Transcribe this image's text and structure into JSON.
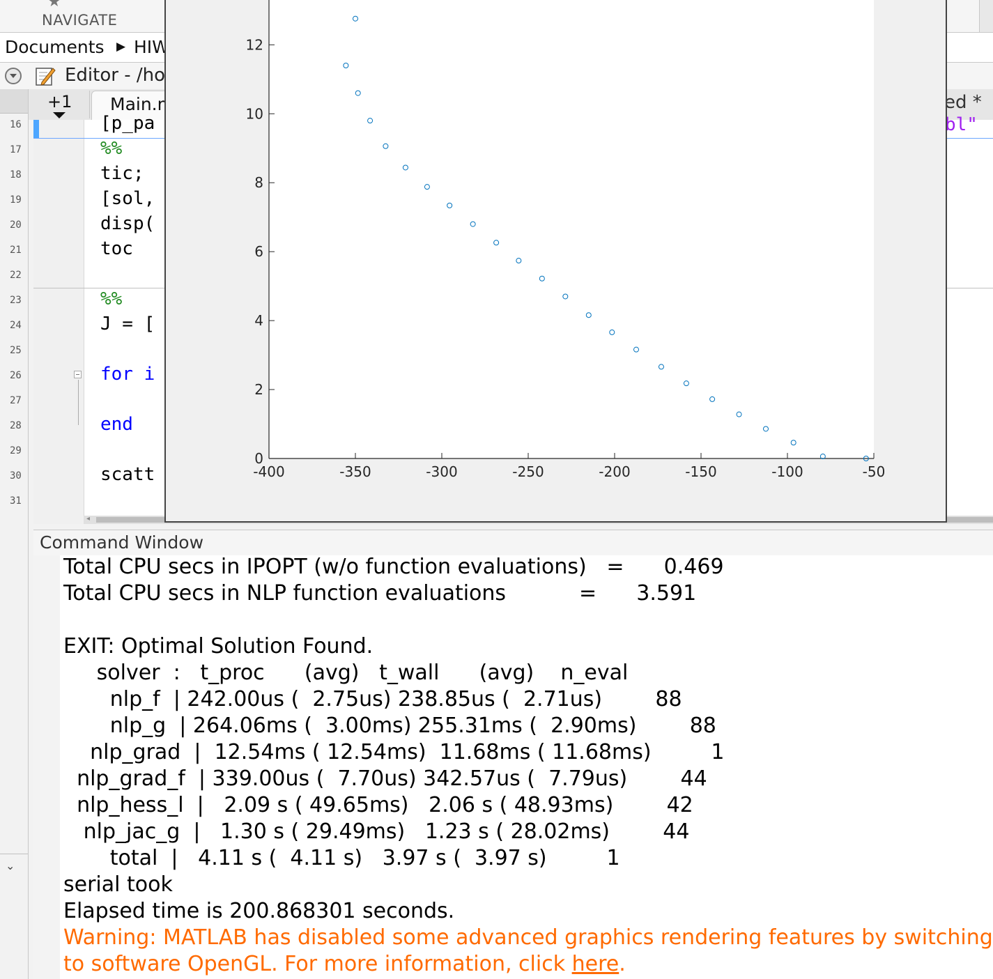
{
  "toolstrip": {
    "navigate_label": "NAVIGATE"
  },
  "address": {
    "crumb_1": "Documents",
    "crumb_2": "HIW"
  },
  "editor": {
    "title": "Editor - /ho",
    "tabs": [
      {
        "label": "+1"
      },
      {
        "label": "Main.m"
      }
    ],
    "right_tab_label": "ed *",
    "right_fragment": "bl\"",
    "lines": [
      {
        "no": "16",
        "code": "[p_pa"
      },
      {
        "no": "17",
        "code": "%%"
      },
      {
        "no": "18",
        "code": "tic;"
      },
      {
        "no": "19",
        "code": "[sol,"
      },
      {
        "no": "20",
        "code": "disp("
      },
      {
        "no": "21",
        "code": "toc"
      },
      {
        "no": "22",
        "code": ""
      },
      {
        "no": "23",
        "code": "%%"
      },
      {
        "no": "24",
        "code": "J = ["
      },
      {
        "no": "25",
        "code": ""
      },
      {
        "no": "26",
        "code": "for i"
      },
      {
        "no": "27",
        "code": ""
      },
      {
        "no": "28",
        "code": "end"
      },
      {
        "no": "29",
        "code": ""
      },
      {
        "no": "30",
        "code": "scatt"
      },
      {
        "no": "31",
        "code": ""
      }
    ]
  },
  "chart_data": {
    "type": "scatter",
    "title": "",
    "xlabel": "",
    "ylabel": "",
    "xlim": [
      -400,
      -50
    ],
    "ylim": [
      0,
      13.3
    ],
    "xticks": [
      -400,
      -350,
      -300,
      -250,
      -200,
      -150,
      -100,
      -50
    ],
    "yticks": [
      0,
      2,
      4,
      6,
      8,
      10,
      12
    ],
    "xtick_labels": [
      "-400",
      "-350",
      "-300",
      "-250",
      "-200",
      "-150",
      "-100",
      "-50"
    ],
    "ytick_labels": [
      "0",
      "2",
      "4",
      "6",
      "8",
      "10",
      "12"
    ],
    "marker_color": "#0072bd",
    "grid": false,
    "points": [
      {
        "x": -355.5,
        "y": 11.4
      },
      {
        "x": -350.0,
        "y": 12.76
      },
      {
        "x": -348.5,
        "y": 10.6
      },
      {
        "x": -341.5,
        "y": 9.8
      },
      {
        "x": -332.5,
        "y": 9.06
      },
      {
        "x": -321.0,
        "y": 8.44
      },
      {
        "x": -308.5,
        "y": 7.88
      },
      {
        "x": -295.5,
        "y": 7.34
      },
      {
        "x": -282.0,
        "y": 6.8
      },
      {
        "x": -268.5,
        "y": 6.26
      },
      {
        "x": -255.5,
        "y": 5.74
      },
      {
        "x": -242.0,
        "y": 5.22
      },
      {
        "x": -228.5,
        "y": 4.7
      },
      {
        "x": -215.0,
        "y": 4.16
      },
      {
        "x": -201.5,
        "y": 3.66
      },
      {
        "x": -187.5,
        "y": 3.16
      },
      {
        "x": -173.0,
        "y": 2.66
      },
      {
        "x": -158.5,
        "y": 2.18
      },
      {
        "x": -143.5,
        "y": 1.72
      },
      {
        "x": -128.0,
        "y": 1.28
      },
      {
        "x": -112.5,
        "y": 0.86
      },
      {
        "x": -96.5,
        "y": 0.46
      },
      {
        "x": -79.5,
        "y": 0.06
      },
      {
        "x": -54.5,
        "y": 0.0
      }
    ]
  },
  "command_window": {
    "title": "Command Window",
    "lines": [
      "Total CPU secs in IPOPT (w/o function evaluations)   =      0.469",
      "Total CPU secs in NLP function evaluations           =      3.591",
      "",
      "EXIT: Optimal Solution Found.",
      "     solver  :   t_proc      (avg)   t_wall      (avg)    n_eval",
      "       nlp_f  | 242.00us (  2.75us) 238.85us (  2.71us)        88",
      "       nlp_g  | 264.06ms (  3.00ms) 255.31ms (  2.90ms)        88",
      "    nlp_grad  |  12.54ms ( 12.54ms)  11.68ms ( 11.68ms)         1",
      "  nlp_grad_f  | 339.00us (  7.70us) 342.57us (  7.79us)        44",
      "  nlp_hess_l  |   2.09 s ( 49.65ms)   2.06 s ( 48.93ms)        42",
      "   nlp_jac_g  |   1.30 s ( 29.49ms)   1.23 s ( 28.02ms)        44",
      "       total  |   4.11 s (  4.11 s)   3.97 s (  3.97 s)         1",
      "serial took",
      "Elapsed time is 200.868301 seconds."
    ],
    "warning_line_1": "Warning: MATLAB has disabled some advanced graphics rendering features by switching",
    "warning_line_2_prefix": "to software OpenGL. For more information, click ",
    "warning_link": "here",
    "warning_line_2_suffix": "."
  }
}
